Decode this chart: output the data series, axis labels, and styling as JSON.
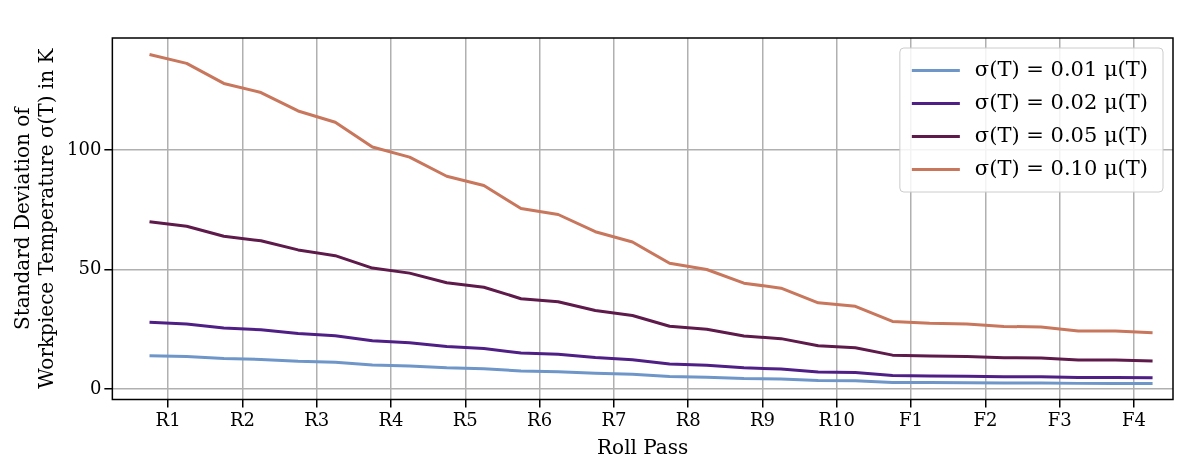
{
  "chart_data": {
    "type": "line",
    "xlabel": "Roll Pass",
    "ylabel": "Standard Deviation of\nWorkpiece Temperature σ(T) in K",
    "categories": [
      null,
      "R1",
      null,
      null,
      null,
      "R2",
      null,
      null,
      null,
      "R3",
      null,
      null,
      null,
      "R4",
      null,
      null,
      null,
      "R5",
      null,
      null,
      null,
      "R6",
      null,
      null,
      null,
      "R7",
      null,
      null,
      null,
      "R8",
      null,
      null,
      null,
      "R9",
      null,
      null,
      null,
      "R10",
      null,
      null,
      null,
      "F1",
      null,
      null,
      null,
      "F2",
      null,
      null,
      null,
      "F3",
      null,
      null,
      null,
      "F4",
      null
    ],
    "ylim": [
      -4.3,
      146.8
    ],
    "yticks": [
      0,
      50,
      100
    ],
    "grid": true,
    "legend": "top right",
    "line_style": "solid",
    "marker": "none",
    "series": [
      {
        "name": "σ(T) = 0.01 μ(T)",
        "color": "#6f96c8",
        "values": [
          14.0,
          null,
          13.6,
          null,
          12.8,
          null,
          12.4,
          null,
          11.6,
          null,
          11.2,
          null,
          10.1,
          null,
          9.7,
          null,
          8.9,
          null,
          8.5,
          null,
          7.6,
          null,
          7.3,
          null,
          6.6,
          null,
          6.2,
          null,
          5.3,
          null,
          5.0,
          null,
          4.4,
          null,
          4.2,
          null,
          3.6,
          null,
          3.5,
          null,
          2.8,
          null,
          2.8,
          null,
          2.7,
          null,
          2.6,
          null,
          2.6,
          null,
          2.4,
          null,
          2.4,
          null,
          2.4
        ]
      },
      {
        "name": "σ(T) = 0.02 μ(T)",
        "color": "#4f1f85",
        "values": [
          28.0,
          null,
          27.2,
          null,
          25.6,
          null,
          24.8,
          null,
          23.3,
          null,
          22.3,
          null,
          20.2,
          null,
          19.4,
          null,
          17.8,
          null,
          17.0,
          null,
          15.1,
          null,
          14.6,
          null,
          13.2,
          null,
          12.3,
          null,
          10.5,
          null,
          10.0,
          null,
          8.9,
          null,
          8.4,
          null,
          7.2,
          null,
          6.9,
          null,
          5.7,
          null,
          5.5,
          null,
          5.4,
          null,
          5.2,
          null,
          5.2,
          null,
          4.9,
          null,
          4.9,
          null,
          4.7
        ]
      },
      {
        "name": "σ(T) = 0.05 μ(T)",
        "color": "#5e1a4a",
        "values": [
          70.0,
          null,
          68.1,
          null,
          63.9,
          null,
          62.0,
          null,
          58.2,
          null,
          55.8,
          null,
          50.6,
          null,
          48.5,
          null,
          44.5,
          null,
          42.6,
          null,
          37.8,
          null,
          36.5,
          null,
          32.9,
          null,
          30.8,
          null,
          26.3,
          null,
          25.0,
          null,
          22.2,
          null,
          21.1,
          null,
          18.1,
          null,
          17.3,
          null,
          14.2,
          null,
          13.8,
          null,
          13.6,
          null,
          13.1,
          null,
          13.0,
          null,
          12.2,
          null,
          12.2,
          null,
          11.8
        ]
      },
      {
        "name": "σ(T) = 0.10 μ(T)",
        "color": "#c8765c",
        "values": [
          139.9,
          null,
          136.2,
          null,
          127.8,
          null,
          124.0,
          null,
          116.3,
          null,
          111.6,
          null,
          101.2,
          null,
          97.0,
          null,
          89.0,
          null,
          85.1,
          null,
          75.5,
          null,
          73.0,
          null,
          65.8,
          null,
          61.5,
          null,
          52.6,
          null,
          50.0,
          null,
          44.3,
          null,
          42.2,
          null,
          36.1,
          null,
          34.6,
          null,
          28.3,
          null,
          27.5,
          null,
          27.2,
          null,
          26.2,
          null,
          26.0,
          null,
          24.3,
          null,
          24.3,
          null,
          23.6
        ]
      }
    ]
  }
}
